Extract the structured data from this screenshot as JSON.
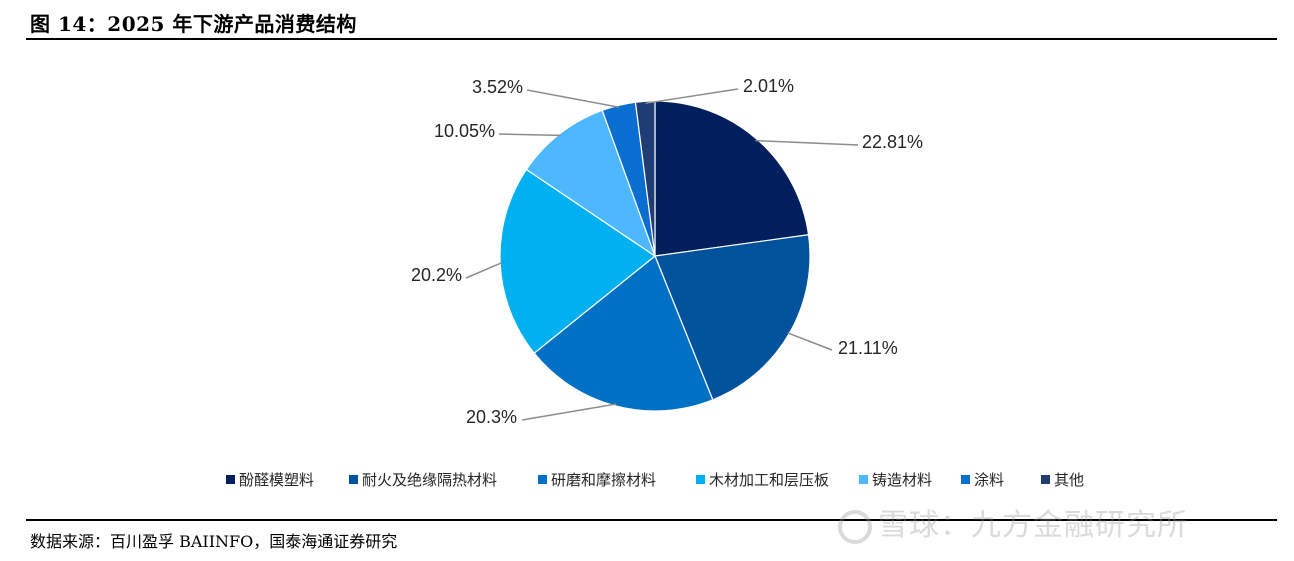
{
  "figure": {
    "title": "图 14：2025 年下游产品消费结构",
    "source": "数据来源：百川盈孚 BAIINFO，国泰海通证券研究",
    "watermark": "雪球：九方金融研究所"
  },
  "chart_data": {
    "type": "pie",
    "legend_position": "bottom",
    "start_angle": "12 o'clock",
    "direction": "clockwise",
    "slices": [
      {
        "label": "酚醛模塑料",
        "value": 22.81,
        "display": "22.81%",
        "color": "#001f5c"
      },
      {
        "label": "耐火及绝缘隔热材料",
        "value": 21.11,
        "display": "21.11%",
        "color": "#00529c"
      },
      {
        "label": "研磨和摩擦材料",
        "value": 20.3,
        "display": "20.3%",
        "color": "#0070c4"
      },
      {
        "label": "木材加工和层压板",
        "value": 20.2,
        "display": "20.2%",
        "color": "#00b0f0"
      },
      {
        "label": "铸造材料",
        "value": 10.05,
        "display": "10.05%",
        "color": "#4db8ff"
      },
      {
        "label": "涂料",
        "value": 3.52,
        "display": "3.52%",
        "color": "#0a6ed1"
      },
      {
        "label": "其他",
        "value": 2.01,
        "display": "2.01%",
        "color": "#1f3d73"
      }
    ]
  }
}
